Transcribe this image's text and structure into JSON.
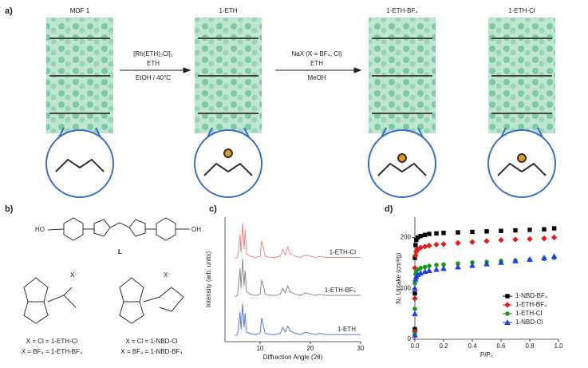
{
  "figure": {
    "panel_a": {
      "label": "a)",
      "stages": [
        "MOF 1",
        "1-ETH",
        "1-ETH-BF₄",
        "1-ETH-Cl"
      ],
      "step1": [
        "[Rh(ETH)₂Cl]₂",
        "ETH",
        "EtOH / 40°C"
      ],
      "step2": [
        "NaX (X = BF₄, Cl)",
        "ETH",
        "MeOH"
      ]
    },
    "panel_b": {
      "label": "b)",
      "ligand": "L",
      "anion": [
        "X⁻",
        "X⁻"
      ],
      "captions": [
        "X = Cl = 1-ETH-Cl",
        "X = BF₄ = 1-ETH-BF₄",
        "X = Cl = 1-NBD-Cl",
        "X = BF₄ = 1-NBD-BF₄"
      ]
    },
    "panel_c": {
      "label": "c)"
    },
    "panel_d": {
      "label": "d)"
    }
  },
  "chart_data": [
    {
      "type": "line",
      "x_label": "Diffraction Angle (2θ)",
      "y_label": "Intensity (arb. units)",
      "x": [
        5,
        5.5,
        6,
        6.2,
        6.5,
        6.8,
        7,
        7.3,
        8,
        9,
        10,
        10.3,
        10.6,
        11,
        12,
        13,
        14,
        14.5,
        15,
        15.5,
        16,
        17,
        18,
        19,
        20,
        21,
        22,
        23,
        24,
        26,
        28,
        30
      ],
      "series": [
        {
          "name": "1-ETH-Cl",
          "color": "#e88a8a",
          "values": [
            70,
            71,
            90,
            75,
            100,
            78,
            95,
            74,
            72,
            71,
            72,
            85,
            80,
            72,
            71,
            71,
            72,
            78,
            73,
            80,
            74,
            72,
            71,
            73,
            72,
            71,
            72,
            71,
            71,
            71,
            71,
            71
          ]
        },
        {
          "name": "1-ETH-BF₄",
          "color": "#8a8a8a",
          "values": [
            38,
            39,
            62,
            45,
            70,
            47,
            60,
            42,
            40,
            39,
            40,
            52,
            48,
            40,
            39,
            39,
            40,
            45,
            41,
            47,
            42,
            40,
            39,
            41,
            40,
            39,
            40,
            39,
            39,
            39,
            39,
            39
          ]
        },
        {
          "name": "1-ETH",
          "color": "#5a78dc",
          "values": [
            5,
            6,
            25,
            10,
            32,
            12,
            24,
            8,
            7,
            6,
            7,
            20,
            14,
            7,
            6,
            6,
            7,
            12,
            8,
            13,
            9,
            7,
            6,
            8,
            7,
            6,
            7,
            6,
            6,
            6,
            6,
            6
          ]
        }
      ],
      "xlim": [
        3,
        30
      ],
      "ylim": [
        0,
        105
      ],
      "xticks": [
        10,
        20,
        30
      ]
    },
    {
      "type": "scatter",
      "x_label": "P/P₀",
      "y_label": "N₂ Uptake (cm³/g)",
      "legend": "lower right",
      "x": [
        0,
        0,
        0,
        0.005,
        0.01,
        0.02,
        0.04,
        0.07,
        0.1,
        0.15,
        0.2,
        0.3,
        0.4,
        0.5,
        0.6,
        0.7,
        0.8,
        0.9,
        0.97
      ],
      "series": [
        {
          "name": "1-NBD-BF₄",
          "color": "#000000",
          "marker": "square",
          "values": [
            20,
            90,
            160,
            185,
            195,
            200,
            203,
            205,
            207,
            208,
            209,
            210,
            211,
            212,
            213,
            214,
            215,
            216,
            218
          ]
        },
        {
          "name": "1-ETH-BF₄",
          "color": "#e02020",
          "marker": "diamond",
          "values": [
            15,
            80,
            140,
            165,
            172,
            177,
            180,
            182,
            184,
            186,
            187,
            189,
            191,
            193,
            195,
            196,
            197,
            198,
            200
          ]
        },
        {
          "name": "1-ETH-Cl",
          "color": "#1a9a1a",
          "marker": "circle",
          "values": [
            10,
            60,
            110,
            128,
            133,
            137,
            140,
            142,
            144,
            146,
            147,
            149,
            151,
            152,
            154,
            155,
            156,
            158,
            160
          ]
        },
        {
          "name": "1-NBD-Cl",
          "color": "#2040e0",
          "marker": "triangle",
          "values": [
            8,
            50,
            100,
            118,
            123,
            127,
            130,
            133,
            135,
            137,
            139,
            142,
            145,
            148,
            151,
            154,
            157,
            160,
            163
          ]
        }
      ],
      "xlim": [
        0,
        1
      ],
      "ylim": [
        0,
        240
      ],
      "xticks": [
        {
          "value": 0,
          "label": "0.0"
        },
        {
          "value": 0.2,
          "label": "0.2"
        },
        {
          "value": 0.4,
          "label": "0.4"
        },
        {
          "value": 0.6,
          "label": "0.6"
        },
        {
          "value": 0.8,
          "label": "0.8"
        },
        {
          "value": 1,
          "label": "1.0"
        }
      ],
      "yticks": [
        0,
        100,
        200
      ]
    }
  ]
}
